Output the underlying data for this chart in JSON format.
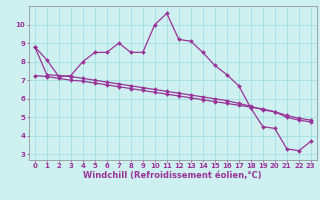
{
  "xlabel": "Windchill (Refroidissement éolien,°C)",
  "background_color": "#cff0f0",
  "line_color": "#993399",
  "xlim": [
    -0.5,
    23.5
  ],
  "ylim": [
    2.7,
    11.0
  ],
  "yticks": [
    3,
    4,
    5,
    6,
    7,
    8,
    9,
    10
  ],
  "xticks": [
    0,
    1,
    2,
    3,
    4,
    5,
    6,
    7,
    8,
    9,
    10,
    11,
    12,
    13,
    14,
    15,
    16,
    17,
    18,
    19,
    20,
    21,
    22,
    23
  ],
  "series_main": [
    8.8,
    8.1,
    7.2,
    7.25,
    8.0,
    8.5,
    8.5,
    9.0,
    8.5,
    8.5,
    10.0,
    10.6,
    9.2,
    9.1,
    8.5,
    7.8,
    7.3,
    6.7,
    5.5,
    4.5,
    4.4,
    3.3,
    3.2,
    3.7
  ],
  "series_line1": [
    8.8,
    7.3,
    7.25,
    7.2,
    7.1,
    7.0,
    6.9,
    6.8,
    6.7,
    6.6,
    6.5,
    6.4,
    6.3,
    6.2,
    6.1,
    6.0,
    5.9,
    5.75,
    5.6,
    5.4,
    5.3,
    5.0,
    4.85,
    4.75
  ],
  "series_line2": [
    7.25,
    7.2,
    7.1,
    7.0,
    6.95,
    6.85,
    6.75,
    6.65,
    6.55,
    6.45,
    6.35,
    6.25,
    6.15,
    6.05,
    5.95,
    5.85,
    5.75,
    5.65,
    5.55,
    5.45,
    5.3,
    5.1,
    4.95,
    4.85
  ],
  "marker": "D",
  "markersize": 2.0,
  "linewidth": 0.9,
  "grid_color": "#99dddd",
  "tick_fontsize": 5.0,
  "xlabel_fontsize": 6.0,
  "grid_linewidth": 0.5
}
